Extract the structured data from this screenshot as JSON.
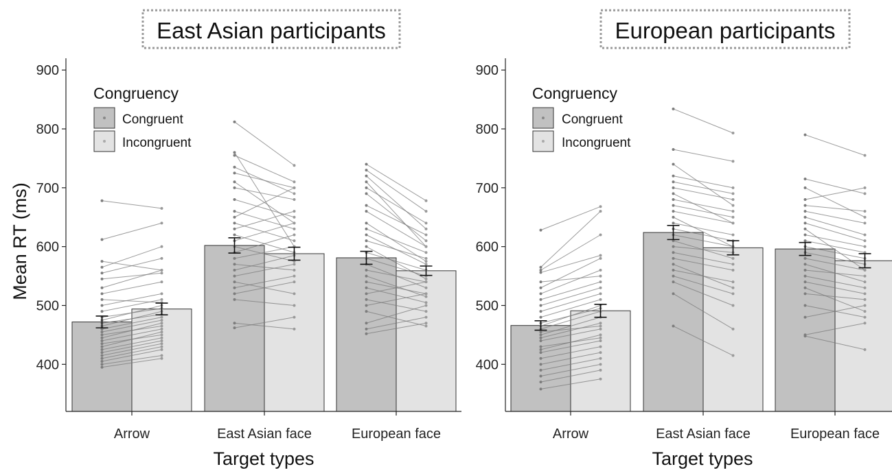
{
  "colors": {
    "congruent": "#c1c1c1",
    "incongruent": "#e3e3e3",
    "bar_stroke": "#333333",
    "lines": "#7a7a7a",
    "title_box": "#999999"
  },
  "shared": {
    "ylabel": "Mean RT (ms)",
    "xlabel": "Target types",
    "ylim": [
      320,
      920
    ],
    "yticks": [
      400,
      500,
      600,
      700,
      800,
      900
    ],
    "legend_title": "Congruency",
    "legend_items": [
      "Congruent",
      "Incongruent"
    ]
  },
  "chart_data": [
    {
      "type": "bar",
      "title": "East Asian participants",
      "xlabel": "Target types",
      "ylabel": "Mean RT (ms)",
      "ylim": [
        320,
        920
      ],
      "legend": "top-left",
      "grid": false,
      "categories": [
        "Arrow",
        "East Asian face",
        "European face"
      ],
      "series": [
        {
          "name": "Congruent",
          "values": [
            472,
            602,
            581
          ],
          "errors": [
            10,
            13,
            11
          ]
        },
        {
          "name": "Incongruent",
          "values": [
            494,
            588,
            559
          ],
          "errors": [
            10,
            11,
            8
          ]
        }
      ],
      "pairs": [
        [
          [
            395,
            410
          ],
          [
            400,
            415
          ],
          [
            405,
            425
          ],
          [
            410,
            430
          ],
          [
            415,
            435
          ],
          [
            420,
            440
          ],
          [
            425,
            445
          ],
          [
            430,
            455
          ],
          [
            435,
            450
          ],
          [
            440,
            460
          ],
          [
            445,
            470
          ],
          [
            450,
            465
          ],
          [
            455,
            475
          ],
          [
            460,
            480
          ],
          [
            465,
            490
          ],
          [
            470,
            485
          ],
          [
            475,
            500
          ],
          [
            480,
            495
          ],
          [
            490,
            510
          ],
          [
            500,
            520
          ],
          [
            510,
            505
          ],
          [
            520,
            540
          ],
          [
            530,
            560
          ],
          [
            545,
            555
          ],
          [
            555,
            580
          ],
          [
            565,
            600
          ],
          [
            575,
            560
          ],
          [
            612,
            640
          ],
          [
            678,
            665
          ]
        ],
        [
          [
            462,
            480
          ],
          [
            470,
            460
          ],
          [
            510,
            500
          ],
          [
            520,
            540
          ],
          [
            530,
            550
          ],
          [
            540,
            520
          ],
          [
            550,
            570
          ],
          [
            560,
            585
          ],
          [
            570,
            560
          ],
          [
            580,
            600
          ],
          [
            590,
            620
          ],
          [
            600,
            575
          ],
          [
            610,
            640
          ],
          [
            620,
            590
          ],
          [
            630,
            660
          ],
          [
            640,
            610
          ],
          [
            650,
            700
          ],
          [
            660,
            630
          ],
          [
            680,
            650
          ],
          [
            700,
            680
          ],
          [
            710,
            640
          ],
          [
            725,
            700
          ],
          [
            735,
            690
          ],
          [
            755,
            710
          ],
          [
            760,
            600
          ],
          [
            812,
            738
          ]
        ],
        [
          [
            452,
            470
          ],
          [
            460,
            480
          ],
          [
            470,
            500
          ],
          [
            490,
            465
          ],
          [
            500,
            520
          ],
          [
            510,
            490
          ],
          [
            520,
            540
          ],
          [
            530,
            505
          ],
          [
            540,
            520
          ],
          [
            550,
            515
          ],
          [
            560,
            540
          ],
          [
            570,
            530
          ],
          [
            580,
            550
          ],
          [
            590,
            560
          ],
          [
            600,
            545
          ],
          [
            610,
            580
          ],
          [
            620,
            570
          ],
          [
            630,
            590
          ],
          [
            640,
            575
          ],
          [
            660,
            600
          ],
          [
            670,
            620
          ],
          [
            690,
            610
          ],
          [
            700,
            640
          ],
          [
            710,
            600
          ],
          [
            720,
            630
          ],
          [
            730,
            660
          ],
          [
            740,
            678
          ]
        ]
      ]
    },
    {
      "type": "bar",
      "title": "European participants",
      "xlabel": "Target types",
      "ylabel": "Mean RT (ms)",
      "ylim": [
        320,
        920
      ],
      "legend": "top-left",
      "grid": false,
      "categories": [
        "Arrow",
        "East Asian face",
        "European face"
      ],
      "series": [
        {
          "name": "Congruent",
          "values": [
            466,
            624,
            596
          ],
          "errors": [
            8,
            12,
            11
          ]
        },
        {
          "name": "Incongruent",
          "values": [
            491,
            598,
            576
          ],
          "errors": [
            11,
            12,
            12
          ]
        }
      ],
      "pairs": [
        [
          [
            358,
            375
          ],
          [
            370,
            390
          ],
          [
            380,
            400
          ],
          [
            390,
            410
          ],
          [
            400,
            420
          ],
          [
            410,
            430
          ],
          [
            420,
            440
          ],
          [
            425,
            450
          ],
          [
            430,
            445
          ],
          [
            440,
            460
          ],
          [
            445,
            470
          ],
          [
            450,
            480
          ],
          [
            455,
            465
          ],
          [
            460,
            490
          ],
          [
            465,
            500
          ],
          [
            470,
            495
          ],
          [
            480,
            510
          ],
          [
            490,
            520
          ],
          [
            500,
            530
          ],
          [
            510,
            540
          ],
          [
            520,
            560
          ],
          [
            530,
            580
          ],
          [
            540,
            550
          ],
          [
            556,
            585
          ],
          [
            560,
            620
          ],
          [
            565,
            660
          ],
          [
            628,
            668
          ]
        ],
        [
          [
            465,
            415
          ],
          [
            520,
            460
          ],
          [
            540,
            500
          ],
          [
            550,
            520
          ],
          [
            560,
            540
          ],
          [
            570,
            530
          ],
          [
            580,
            560
          ],
          [
            590,
            570
          ],
          [
            600,
            590
          ],
          [
            610,
            580
          ],
          [
            620,
            600
          ],
          [
            630,
            610
          ],
          [
            640,
            620
          ],
          [
            650,
            600
          ],
          [
            660,
            640
          ],
          [
            670,
            650
          ],
          [
            680,
            660
          ],
          [
            690,
            640
          ],
          [
            700,
            680
          ],
          [
            710,
            690
          ],
          [
            720,
            700
          ],
          [
            740,
            670
          ],
          [
            765,
            745
          ],
          [
            834,
            793
          ]
        ],
        [
          [
            448,
            425
          ],
          [
            450,
            470
          ],
          [
            480,
            500
          ],
          [
            500,
            480
          ],
          [
            520,
            510
          ],
          [
            530,
            490
          ],
          [
            540,
            520
          ],
          [
            550,
            530
          ],
          [
            560,
            550
          ],
          [
            570,
            540
          ],
          [
            580,
            560
          ],
          [
            590,
            570
          ],
          [
            600,
            580
          ],
          [
            610,
            590
          ],
          [
            620,
            600
          ],
          [
            630,
            560
          ],
          [
            640,
            610
          ],
          [
            650,
            620
          ],
          [
            660,
            640
          ],
          [
            670,
            660
          ],
          [
            680,
            700
          ],
          [
            700,
            650
          ],
          [
            715,
            690
          ],
          [
            790,
            755
          ]
        ]
      ]
    }
  ]
}
